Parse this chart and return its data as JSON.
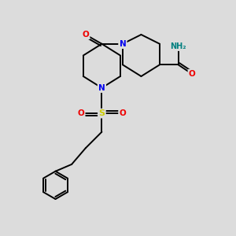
{
  "background_color": "#dcdcdc",
  "atom_colors": {
    "N": "#0000ee",
    "O": "#ee0000",
    "S": "#cccc00",
    "NH2": "#008080",
    "C": "#000000"
  },
  "bond_color": "#000000",
  "bond_lw": 1.4,
  "fig_size": [
    3.0,
    3.0
  ],
  "dpi": 100
}
